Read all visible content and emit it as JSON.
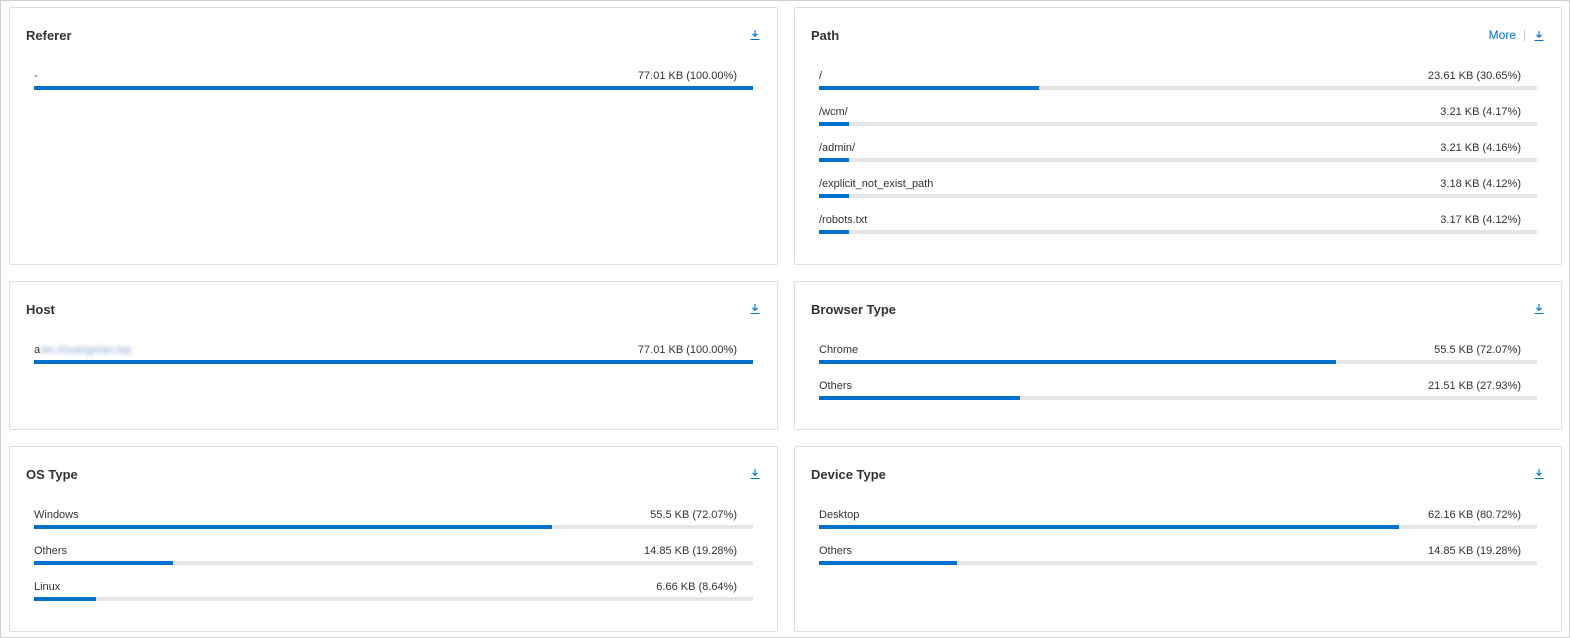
{
  "colors": {
    "accent": "#0070cc",
    "track": "#e6e6e6"
  },
  "icons": {
    "download": "download-icon"
  },
  "cards": [
    {
      "id": "referer",
      "title": "Referer",
      "more": "",
      "rows": [
        {
          "label": "-",
          "value": "77.01 KB (100.00%)",
          "percent": 100.0
        }
      ]
    },
    {
      "id": "path",
      "title": "Path",
      "more": "More",
      "rows": [
        {
          "label": "/",
          "value": "23.61 KB (30.65%)",
          "percent": 30.65
        },
        {
          "label": "/wcm/",
          "value": "3.21 KB (4.17%)",
          "percent": 4.17
        },
        {
          "label": "/admin/",
          "value": "3.21 KB (4.16%)",
          "percent": 4.16
        },
        {
          "label": "/explicit_not_exist_path",
          "value": "3.18 KB (4.12%)",
          "percent": 4.12
        },
        {
          "label": "/robots.txt",
          "value": "3.17 KB (4.12%)",
          "percent": 4.12
        }
      ]
    },
    {
      "id": "host",
      "title": "Host",
      "more": "",
      "rows": [
        {
          "label": "a",
          "label_blurred": "ws.shuangxiao.top",
          "value": "77.01 KB (100.00%)",
          "percent": 100.0
        }
      ]
    },
    {
      "id": "browser",
      "title": "Browser Type",
      "more": "",
      "rows": [
        {
          "label": "Chrome",
          "value": "55.5 KB (72.07%)",
          "percent": 72.07
        },
        {
          "label": "Others",
          "value": "21.51 KB (27.93%)",
          "percent": 27.93
        }
      ]
    },
    {
      "id": "os",
      "title": "OS Type",
      "more": "",
      "rows": [
        {
          "label": "Windows",
          "value": "55.5 KB (72.07%)",
          "percent": 72.07
        },
        {
          "label": "Others",
          "value": "14.85 KB (19.28%)",
          "percent": 19.28
        },
        {
          "label": "Linux",
          "value": "6.66 KB (8.64%)",
          "percent": 8.64
        }
      ]
    },
    {
      "id": "device",
      "title": "Device Type",
      "more": "",
      "rows": [
        {
          "label": "Desktop",
          "value": "62.16 KB (80.72%)",
          "percent": 80.72
        },
        {
          "label": "Others",
          "value": "14.85 KB (19.28%)",
          "percent": 19.28
        }
      ]
    }
  ]
}
